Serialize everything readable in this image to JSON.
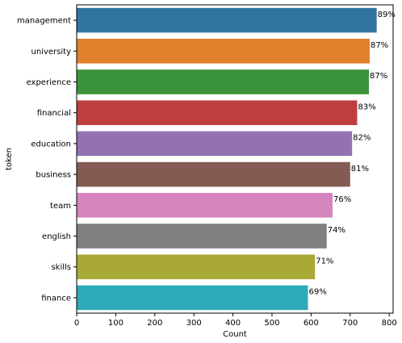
{
  "chart_data": {
    "type": "bar",
    "orientation": "horizontal",
    "title": "",
    "xlabel": "Count",
    "ylabel": "token",
    "xlim": [
      0,
      810
    ],
    "xticks": [
      0,
      100,
      200,
      300,
      400,
      500,
      600,
      700,
      800
    ],
    "grid": false,
    "categories": [
      "management",
      "university",
      "experience",
      "financial",
      "education",
      "business",
      "team",
      "english",
      "skills",
      "finance"
    ],
    "values": [
      768,
      750,
      748,
      718,
      705,
      700,
      655,
      640,
      610,
      592
    ],
    "labels": [
      "89%",
      "87%",
      "87%",
      "83%",
      "82%",
      "81%",
      "76%",
      "74%",
      "71%",
      "69%"
    ],
    "colors": [
      "#3274a1",
      "#e1812c",
      "#3a923a",
      "#c03d3e",
      "#9372b2",
      "#845b53",
      "#d684bd",
      "#7f7f7f",
      "#a9aa35",
      "#2ea9b9"
    ]
  }
}
